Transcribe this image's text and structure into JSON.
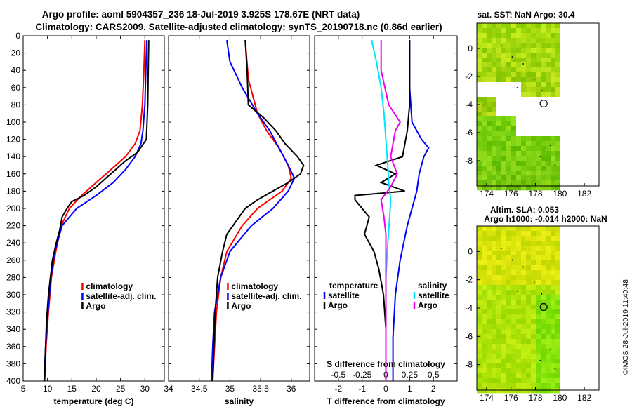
{
  "header": {
    "line1": "Argo profile: aoml 5904357_236 18-Jul-2019 3.925S 178.67E (NRT data)",
    "line2": "Climatology: CARS2009. Satellite-adjusted climatology: synTS_20190718.nc (0.86d earlier)"
  },
  "colors": {
    "climatology": "#ff0000",
    "satellite": "#0000ff",
    "argo": "#000000",
    "satellite_s": "#00e5ff",
    "climatology_s": "#ee00ee",
    "land": "#ffffff"
  },
  "chart_data": [
    {
      "id": "temp",
      "type": "line",
      "title": "",
      "xlabel": "temperature (deg C)",
      "ylabel": "",
      "xlim": [
        5,
        34
      ],
      "ylim": [
        400,
        0
      ],
      "xticks": [
        "5",
        "10",
        "15",
        "20",
        "25",
        "30"
      ],
      "xtick_values": [
        5,
        10,
        15,
        20,
        25,
        30
      ],
      "yticks": [
        "0",
        "20",
        "40",
        "60",
        "80",
        "100",
        "120",
        "140",
        "160",
        "180",
        "200",
        "220",
        "240",
        "260",
        "280",
        "300",
        "320",
        "340",
        "360",
        "380",
        "400"
      ],
      "ytick_values": [
        0,
        20,
        40,
        60,
        80,
        100,
        120,
        140,
        160,
        180,
        200,
        220,
        240,
        260,
        280,
        300,
        320,
        340,
        360,
        380,
        400
      ],
      "legend": [
        "climatology",
        "satellite-adj. clim.",
        "Argo"
      ],
      "series": [
        {
          "name": "climatology",
          "color": "#ff0000",
          "depth": [
            5,
            40,
            80,
            110,
            125,
            140,
            155,
            170,
            185,
            200,
            220,
            250,
            280,
            320,
            360,
            400
          ],
          "values": [
            30,
            29.8,
            29.5,
            29,
            28,
            26,
            23,
            20,
            17,
            14.5,
            12.8,
            11.7,
            10.8,
            10.2,
            9.7,
            9.4
          ]
        },
        {
          "name": "satellite-adj. clim.",
          "color": "#0000ff",
          "depth": [
            5,
            40,
            80,
            110,
            125,
            140,
            155,
            170,
            185,
            200,
            220,
            250,
            280,
            320,
            360,
            400
          ],
          "values": [
            30.4,
            30.2,
            30,
            29.6,
            29.2,
            28,
            26,
            23.5,
            20,
            16,
            13,
            11.5,
            10.7,
            10.1,
            9.6,
            9.3
          ]
        },
        {
          "name": "Argo",
          "color": "#000000",
          "depth": [
            5,
            40,
            80,
            120,
            135,
            145,
            155,
            165,
            175,
            185,
            192,
            200,
            210,
            225,
            240,
            260,
            280,
            300,
            330,
            360,
            400
          ],
          "values": [
            30.8,
            30.7,
            30.6,
            30.3,
            28.5,
            26,
            24,
            22,
            20,
            17.5,
            15,
            14,
            13,
            12.5,
            11.8,
            11,
            10.6,
            10.2,
            9.8,
            9.6,
            9.4
          ]
        }
      ]
    },
    {
      "id": "sal",
      "type": "line",
      "title": "",
      "xlabel": "salinity",
      "ylabel": "",
      "xlim": [
        34,
        36.3
      ],
      "ylim": [
        400,
        0
      ],
      "xticks": [
        "34",
        "34.5",
        "35",
        "35.5",
        "36"
      ],
      "xtick_values": [
        34,
        34.5,
        35,
        35.5,
        36
      ],
      "legend": [
        "climatology",
        "satellite-adj. clim.",
        "Argo"
      ],
      "series": [
        {
          "name": "climatology",
          "color": "#ff0000",
          "depth": [
            5,
            50,
            90,
            110,
            130,
            150,
            165,
            180,
            200,
            220,
            250,
            280,
            320,
            360,
            400
          ],
          "values": [
            35.25,
            35.3,
            35.45,
            35.6,
            35.8,
            35.95,
            36,
            35.85,
            35.45,
            35.2,
            34.95,
            34.85,
            34.78,
            34.75,
            34.72
          ]
        },
        {
          "name": "satellite-adj. clim.",
          "color": "#0000ff",
          "depth": [
            5,
            30,
            60,
            90,
            110,
            130,
            150,
            165,
            180,
            200,
            220,
            250,
            280,
            320,
            360,
            400
          ],
          "values": [
            34.95,
            35,
            35.2,
            35.45,
            35.65,
            35.8,
            35.95,
            36.05,
            35.95,
            35.7,
            35.35,
            35,
            34.85,
            34.75,
            34.72,
            34.7
          ]
        },
        {
          "name": "Argo",
          "color": "#000000",
          "depth": [
            5,
            40,
            80,
            95,
            110,
            125,
            140,
            150,
            160,
            170,
            180,
            190,
            200,
            215,
            230,
            250,
            280,
            320,
            360,
            400
          ],
          "values": [
            35.25,
            35.28,
            35.3,
            35.55,
            35.75,
            35.9,
            36.1,
            36.2,
            36.15,
            35.95,
            35.7,
            35.45,
            35.25,
            35.1,
            34.95,
            34.88,
            34.8,
            34.76,
            34.74,
            34.72
          ]
        }
      ]
    },
    {
      "id": "diff",
      "type": "line",
      "title": "",
      "xlabel": "T difference from climatology",
      "xlabel2": "S difference from climatology",
      "ylabel": "",
      "xlim": [
        -3,
        3
      ],
      "xlim_S": [
        -0.75,
        0.75
      ],
      "ylim": [
        400,
        0
      ],
      "xticks": [
        "-2",
        "-1",
        "0",
        "1",
        "2"
      ],
      "xtick_values": [
        -2,
        -1,
        0,
        1,
        2
      ],
      "xticks_S": [
        "-0.5",
        "-0.25",
        "0",
        "0.25",
        "0.5"
      ],
      "xtick_values_S": [
        -0.5,
        -0.25,
        0,
        0.25,
        0.5
      ],
      "legend_temperature_title": "temperature",
      "legend_salinity_title": "salinity",
      "legend_temperature": [
        "satellite",
        "Argo"
      ],
      "legend_salinity": [
        "satellite",
        "Argo"
      ],
      "series": [
        {
          "name": "T satellite",
          "color": "#0000ff",
          "depth": [
            5,
            60,
            100,
            120,
            130,
            140,
            160,
            180,
            200,
            220,
            260,
            300,
            350,
            400
          ],
          "values": [
            1,
            1,
            1.1,
            1.5,
            1.8,
            1.6,
            1.4,
            1.3,
            1.1,
            0.9,
            0.6,
            0.4,
            0.3,
            0.3
          ]
        },
        {
          "name": "T Argo",
          "color": "#000000",
          "depth": [
            5,
            80,
            110,
            125,
            140,
            150,
            160,
            170,
            180,
            185,
            190,
            200,
            210,
            230,
            250,
            270,
            300,
            340,
            400
          ],
          "values": [
            1,
            1,
            0.9,
            0.8,
            0.7,
            -0.4,
            0.4,
            -0.2,
            0.8,
            -1.3,
            -1.3,
            -1,
            -0.7,
            -0.9,
            -0.5,
            -0.3,
            -0.1,
            0,
            0
          ]
        },
        {
          "name": "S satellite",
          "color": "#00e5ff",
          "depth": [
            5,
            30,
            60,
            90,
            120,
            150,
            170,
            190,
            210,
            240,
            280,
            320,
            360,
            400
          ],
          "values": [
            -0.15,
            -0.1,
            -0.05,
            -0.02,
            0,
            0.02,
            0.03,
            0.05,
            0.04,
            0.02,
            0,
            0,
            0,
            0
          ]
        },
        {
          "name": "S Argo",
          "color": "#ee00ee",
          "depth": [
            5,
            40,
            80,
            100,
            110,
            140,
            160,
            175,
            190,
            210,
            230,
            260,
            300,
            340,
            400
          ],
          "values": [
            -0.05,
            -0.05,
            0.03,
            0.15,
            0.1,
            0.05,
            0.12,
            0.05,
            -0.05,
            -0.02,
            0,
            0,
            0,
            0,
            0
          ]
        }
      ]
    },
    {
      "id": "sst_map",
      "type": "heatmap",
      "title": "sat. SST: NaN Argo: 30.4",
      "xlim": [
        173.2,
        183.2
      ],
      "ylim": [
        -9.8,
        1.8
      ],
      "xticks": [
        "174",
        "176",
        "178",
        "180",
        "182"
      ],
      "xtick_values": [
        174,
        176,
        178,
        180,
        182
      ],
      "yticks": [
        "0",
        "-2",
        "-4",
        "-6",
        "-8"
      ],
      "ytick_values": [
        0,
        -2,
        -4,
        -6,
        -8
      ],
      "data_right_edge": 180,
      "marker": {
        "lon": 178.67,
        "lat": -3.925
      }
    },
    {
      "id": "sla_map",
      "type": "heatmap",
      "title": "Altim. SLA: 0.053",
      "subtitle": "Argo h1000: -0.014 h2000: NaN",
      "xlim": [
        173.2,
        183.2
      ],
      "ylim": [
        -9.8,
        1.8
      ],
      "xticks": [
        "174",
        "176",
        "178",
        "180",
        "182"
      ],
      "xtick_values": [
        174,
        176,
        178,
        180,
        182
      ],
      "yticks": [
        "0",
        "-2",
        "-4",
        "-6",
        "-8"
      ],
      "ytick_values": [
        0,
        -2,
        -4,
        -6,
        -8
      ],
      "data_right_edge": 180,
      "marker": {
        "lon": 178.67,
        "lat": -3.925
      }
    }
  ],
  "footer": {
    "stamp": "©IMOS 28-Jul-2019 11:40:48"
  }
}
